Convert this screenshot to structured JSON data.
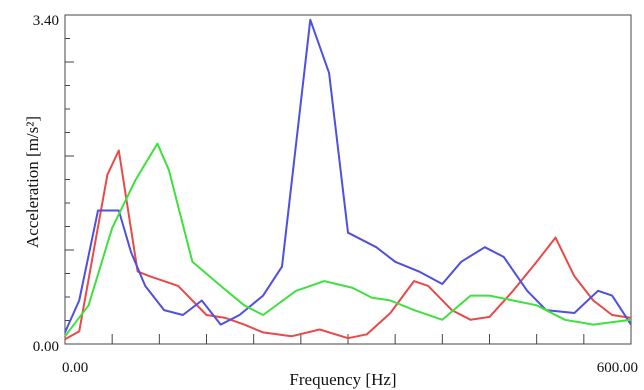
{
  "chart_data": {
    "type": "line",
    "xlabel": "Frequency [Hz]",
    "ylabel": "Acceleration [m/s²]",
    "xlim": [
      0,
      600
    ],
    "ylim": [
      0,
      3.4
    ],
    "x_tick_labels": [
      "0.00",
      "600.00"
    ],
    "y_tick_labels": [
      "0.00",
      "3.40"
    ],
    "grid": false,
    "legend": "none",
    "series": [
      {
        "color": "#e84a4a",
        "x": [
          0,
          15,
          45,
          57,
          77,
          90,
          120,
          150,
          170,
          190,
          210,
          240,
          270,
          300,
          320,
          345,
          370,
          385,
          410,
          430,
          450,
          475,
          500,
          520,
          540,
          560,
          580,
          600
        ],
        "y": [
          0.05,
          0.13,
          1.75,
          2.0,
          0.75,
          0.7,
          0.6,
          0.3,
          0.27,
          0.2,
          0.12,
          0.08,
          0.15,
          0.06,
          0.1,
          0.32,
          0.65,
          0.6,
          0.35,
          0.25,
          0.28,
          0.55,
          0.85,
          1.1,
          0.7,
          0.45,
          0.3,
          0.27
        ]
      },
      {
        "color": "#4f4fe0",
        "x": [
          0,
          15,
          35,
          57,
          70,
          85,
          105,
          125,
          145,
          165,
          185,
          210,
          230,
          260,
          280,
          300,
          330,
          350,
          375,
          400,
          420,
          445,
          465,
          490,
          510,
          540,
          565,
          580,
          600
        ],
        "y": [
          0.12,
          0.45,
          1.38,
          1.38,
          0.95,
          0.6,
          0.35,
          0.3,
          0.45,
          0.2,
          0.3,
          0.5,
          0.8,
          3.35,
          2.8,
          1.15,
          1.0,
          0.85,
          0.75,
          0.62,
          0.85,
          1.0,
          0.9,
          0.55,
          0.35,
          0.32,
          0.55,
          0.5,
          0.2
        ]
      },
      {
        "color": "#3fe03f",
        "x": [
          0,
          25,
          50,
          75,
          98,
          110,
          135,
          165,
          190,
          210,
          245,
          275,
          305,
          325,
          345,
          370,
          400,
          430,
          450,
          475,
          500,
          530,
          560,
          600
        ],
        "y": [
          0.08,
          0.4,
          1.2,
          1.7,
          2.07,
          1.8,
          0.85,
          0.6,
          0.4,
          0.3,
          0.55,
          0.65,
          0.58,
          0.48,
          0.45,
          0.35,
          0.25,
          0.5,
          0.5,
          0.45,
          0.4,
          0.25,
          0.2,
          0.25
        ]
      }
    ]
  }
}
